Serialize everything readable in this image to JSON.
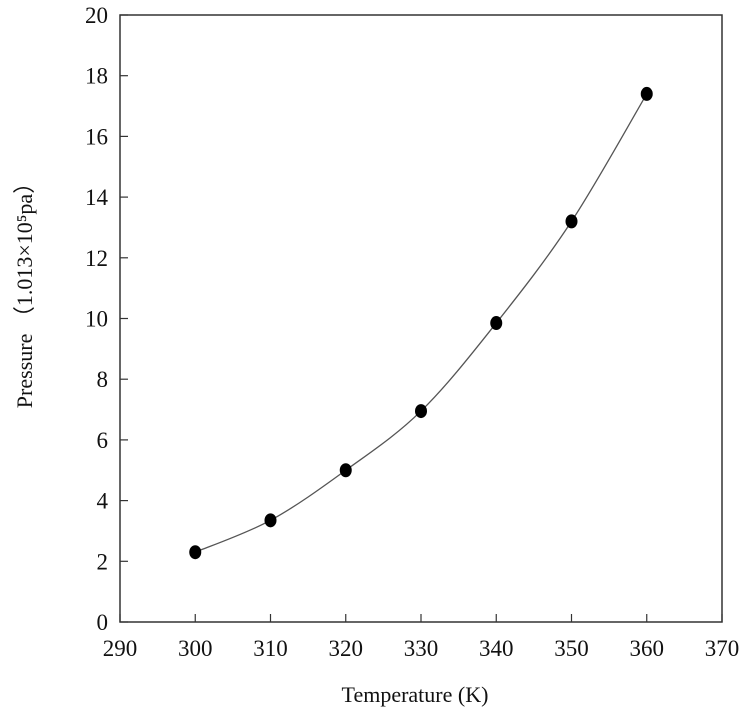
{
  "chart_data": {
    "type": "scatter",
    "title": "",
    "xlabel": "Temperature (K)",
    "ylabel": "Pressure （1.013×10⁵pa）",
    "xlim": [
      290,
      370
    ],
    "ylim": [
      0,
      20
    ],
    "xticks": [
      290,
      300,
      310,
      320,
      330,
      340,
      350,
      360,
      370
    ],
    "yticks": [
      0,
      2,
      4,
      6,
      8,
      10,
      12,
      14,
      16,
      18,
      20
    ],
    "grid": false,
    "legend": "none",
    "connected": true,
    "marker_color": "#000000",
    "line_color": "#555555",
    "series": [
      {
        "x": [
          300,
          310,
          320,
          330,
          340,
          350,
          360
        ],
        "y": [
          2.3,
          3.35,
          5.0,
          6.95,
          9.85,
          13.2,
          17.4
        ]
      }
    ]
  }
}
